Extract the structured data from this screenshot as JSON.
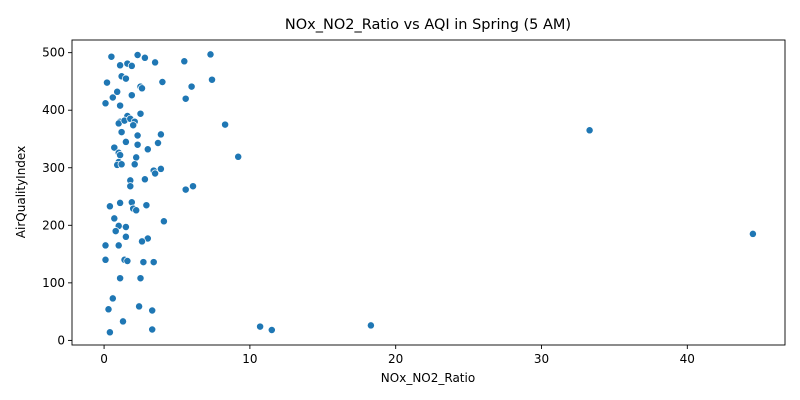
{
  "chart_data": {
    "type": "scatter",
    "title": "NOx_NO2_Ratio vs AQI in Spring (5 AM)",
    "xlabel": "NOx_NO2_Ratio",
    "ylabel": "AirQualityIndex",
    "xlim": [
      -2.2,
      46.7
    ],
    "ylim": [
      -8,
      522
    ],
    "xticks": [
      0,
      10,
      20,
      30,
      40
    ],
    "yticks": [
      0,
      100,
      200,
      300,
      400,
      500
    ],
    "grid": false,
    "marker_color": "#1f77b4",
    "points": [
      [
        0.5,
        493
      ],
      [
        2.3,
        496
      ],
      [
        2.8,
        491
      ],
      [
        5.5,
        485
      ],
      [
        7.3,
        497
      ],
      [
        1.1,
        478
      ],
      [
        1.6,
        481
      ],
      [
        1.9,
        477
      ],
      [
        3.5,
        483
      ],
      [
        1.2,
        459
      ],
      [
        1.5,
        455
      ],
      [
        0.2,
        448
      ],
      [
        4.0,
        449
      ],
      [
        7.4,
        453
      ],
      [
        2.5,
        441
      ],
      [
        2.6,
        438
      ],
      [
        6.0,
        441
      ],
      [
        0.9,
        432
      ],
      [
        0.6,
        422
      ],
      [
        1.9,
        426
      ],
      [
        0.1,
        412
      ],
      [
        1.1,
        408
      ],
      [
        5.6,
        420
      ],
      [
        2.5,
        394
      ],
      [
        1.6,
        390
      ],
      [
        1.1,
        380
      ],
      [
        1.0,
        377
      ],
      [
        1.4,
        382
      ],
      [
        1.8,
        385
      ],
      [
        2.1,
        380
      ],
      [
        2.0,
        374
      ],
      [
        8.3,
        375
      ],
      [
        33.3,
        365
      ],
      [
        1.2,
        362
      ],
      [
        2.3,
        356
      ],
      [
        3.9,
        358
      ],
      [
        1.5,
        345
      ],
      [
        3.7,
        343
      ],
      [
        0.7,
        335
      ],
      [
        2.3,
        340
      ],
      [
        3.0,
        332
      ],
      [
        1.0,
        326
      ],
      [
        1.1,
        322
      ],
      [
        2.2,
        318
      ],
      [
        9.2,
        319
      ],
      [
        1.0,
        310
      ],
      [
        0.9,
        305
      ],
      [
        1.2,
        306
      ],
      [
        2.1,
        306
      ],
      [
        3.9,
        298
      ],
      [
        3.4,
        295
      ],
      [
        3.5,
        290
      ],
      [
        1.8,
        278
      ],
      [
        2.8,
        280
      ],
      [
        1.8,
        268
      ],
      [
        6.1,
        268
      ],
      [
        5.6,
        262
      ],
      [
        1.9,
        240
      ],
      [
        1.1,
        239
      ],
      [
        0.4,
        233
      ],
      [
        2.9,
        235
      ],
      [
        2.0,
        229
      ],
      [
        2.2,
        226
      ],
      [
        0.7,
        212
      ],
      [
        4.1,
        207
      ],
      [
        1.0,
        199
      ],
      [
        1.5,
        197
      ],
      [
        0.8,
        190
      ],
      [
        44.5,
        185
      ],
      [
        1.5,
        180
      ],
      [
        3.0,
        177
      ],
      [
        2.6,
        172
      ],
      [
        0.1,
        165
      ],
      [
        1.0,
        165
      ],
      [
        1.4,
        140
      ],
      [
        1.6,
        138
      ],
      [
        0.1,
        140
      ],
      [
        2.7,
        136
      ],
      [
        3.4,
        136
      ],
      [
        1.1,
        108
      ],
      [
        2.5,
        108
      ],
      [
        0.6,
        73
      ],
      [
        2.4,
        59
      ],
      [
        0.3,
        54
      ],
      [
        3.3,
        52
      ],
      [
        1.3,
        33
      ],
      [
        10.7,
        24
      ],
      [
        18.3,
        26
      ],
      [
        11.5,
        18
      ],
      [
        3.3,
        19
      ],
      [
        0.4,
        14
      ]
    ]
  }
}
